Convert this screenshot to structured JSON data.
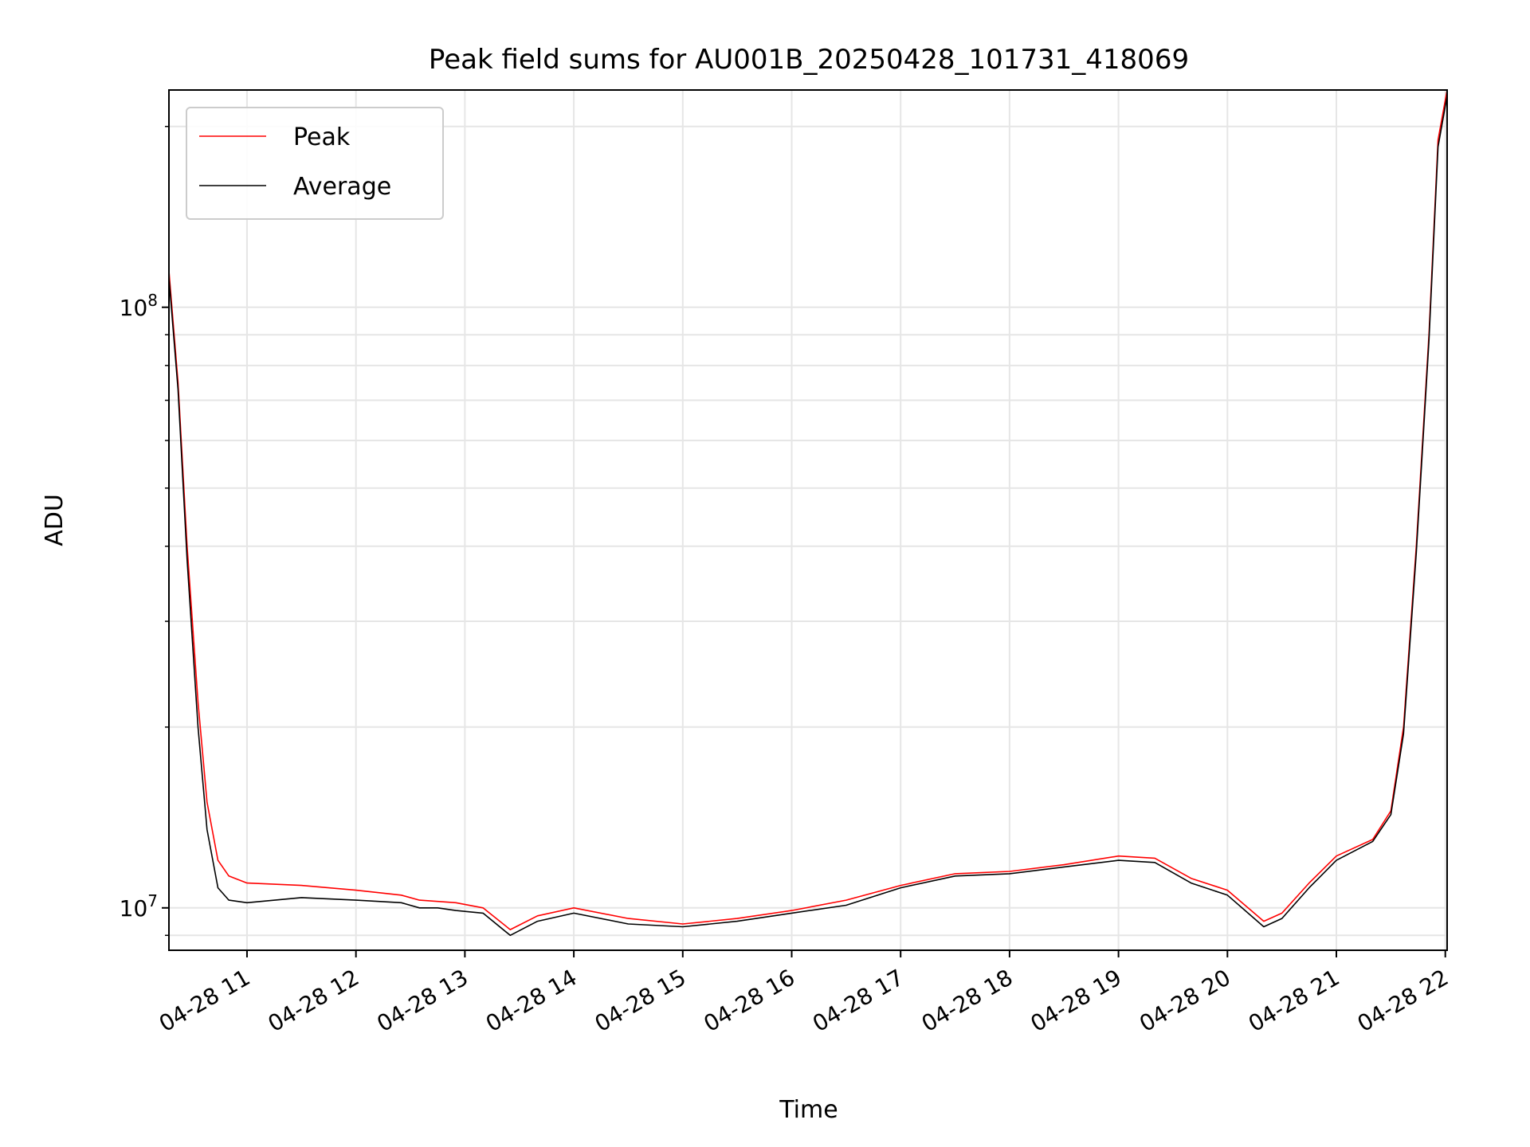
{
  "chart_data": {
    "type": "line",
    "title": "Peak field sums for AU001B_20250428_101731_418069",
    "xlabel": "Time",
    "ylabel": "ADU",
    "y_scale": "log",
    "ylim": [
      8500000,
      230000000
    ],
    "x_range": [
      "2025-04-28 10:17",
      "2025-04-28 22:01"
    ],
    "x_ticks": [
      {
        "t": "2025-04-28 11:00",
        "label": "04-28 11"
      },
      {
        "t": "2025-04-28 12:00",
        "label": "04-28 12"
      },
      {
        "t": "2025-04-28 13:00",
        "label": "04-28 13"
      },
      {
        "t": "2025-04-28 14:00",
        "label": "04-28 14"
      },
      {
        "t": "2025-04-28 15:00",
        "label": "04-28 15"
      },
      {
        "t": "2025-04-28 16:00",
        "label": "04-28 16"
      },
      {
        "t": "2025-04-28 17:00",
        "label": "04-28 17"
      },
      {
        "t": "2025-04-28 18:00",
        "label": "04-28 18"
      },
      {
        "t": "2025-04-28 19:00",
        "label": "04-28 19"
      },
      {
        "t": "2025-04-28 20:00",
        "label": "04-28 20"
      },
      {
        "t": "2025-04-28 21:00",
        "label": "04-28 21"
      },
      {
        "t": "2025-04-28 22:00",
        "label": "04-28 22"
      }
    ],
    "y_ticks": [
      {
        "value": 10000000,
        "base": "10",
        "exp": "7"
      },
      {
        "value": 100000000,
        "base": "10",
        "exp": "8"
      }
    ],
    "grid": true,
    "legend_position": "top-left",
    "series": [
      {
        "name": "Peak",
        "color": "#ff0000",
        "x": [
          "2025-04-28 10:17",
          "2025-04-28 10:22",
          "2025-04-28 10:27",
          "2025-04-28 10:33",
          "2025-04-28 10:38",
          "2025-04-28 10:44",
          "2025-04-28 10:50",
          "2025-04-28 11:00",
          "2025-04-28 11:30",
          "2025-04-28 12:00",
          "2025-04-28 12:25",
          "2025-04-28 12:35",
          "2025-04-28 12:45",
          "2025-04-28 12:55",
          "2025-04-28 13:10",
          "2025-04-28 13:25",
          "2025-04-28 13:40",
          "2025-04-28 14:00",
          "2025-04-28 14:30",
          "2025-04-28 15:00",
          "2025-04-28 15:30",
          "2025-04-28 16:00",
          "2025-04-28 16:30",
          "2025-04-28 17:00",
          "2025-04-28 17:30",
          "2025-04-28 18:00",
          "2025-04-28 18:30",
          "2025-04-28 19:00",
          "2025-04-28 19:20",
          "2025-04-28 19:40",
          "2025-04-28 20:00",
          "2025-04-28 20:20",
          "2025-04-28 20:30",
          "2025-04-28 20:45",
          "2025-04-28 21:00",
          "2025-04-28 21:20",
          "2025-04-28 21:30",
          "2025-04-28 21:37",
          "2025-04-28 21:44",
          "2025-04-28 21:51",
          "2025-04-28 21:56",
          "2025-04-28 22:01"
        ],
        "values": [
          115000000,
          75000000,
          40000000,
          22000000,
          15000000,
          12000000,
          11300000,
          11000000,
          10900000,
          10700000,
          10500000,
          10300000,
          10250000,
          10200000,
          10000000,
          9200000,
          9700000,
          10000000,
          9600000,
          9400000,
          9600000,
          9900000,
          10300000,
          10900000,
          11400000,
          11500000,
          11800000,
          12200000,
          12100000,
          11200000,
          10700000,
          9500000,
          9800000,
          11000000,
          12200000,
          13000000,
          14500000,
          20000000,
          40000000,
          90000000,
          190000000,
          230000000
        ]
      },
      {
        "name": "Average",
        "color": "#000000",
        "x": [
          "2025-04-28 10:17",
          "2025-04-28 10:22",
          "2025-04-28 10:27",
          "2025-04-28 10:33",
          "2025-04-28 10:38",
          "2025-04-28 10:44",
          "2025-04-28 10:50",
          "2025-04-28 11:00",
          "2025-04-28 11:30",
          "2025-04-28 12:00",
          "2025-04-28 12:25",
          "2025-04-28 12:35",
          "2025-04-28 12:45",
          "2025-04-28 12:55",
          "2025-04-28 13:10",
          "2025-04-28 13:25",
          "2025-04-28 13:40",
          "2025-04-28 14:00",
          "2025-04-28 14:30",
          "2025-04-28 15:00",
          "2025-04-28 15:30",
          "2025-04-28 16:00",
          "2025-04-28 16:30",
          "2025-04-28 17:00",
          "2025-04-28 17:30",
          "2025-04-28 18:00",
          "2025-04-28 18:30",
          "2025-04-28 19:00",
          "2025-04-28 19:20",
          "2025-04-28 19:40",
          "2025-04-28 20:00",
          "2025-04-28 20:20",
          "2025-04-28 20:30",
          "2025-04-28 20:45",
          "2025-04-28 21:00",
          "2025-04-28 21:20",
          "2025-04-28 21:30",
          "2025-04-28 21:37",
          "2025-04-28 21:44",
          "2025-04-28 21:51",
          "2025-04-28 21:56",
          "2025-04-28 22:01"
        ],
        "values": [
          112000000,
          73000000,
          38000000,
          20000000,
          13500000,
          10800000,
          10300000,
          10200000,
          10400000,
          10300000,
          10200000,
          10000000,
          10000000,
          9900000,
          9800000,
          9000000,
          9500000,
          9800000,
          9400000,
          9300000,
          9500000,
          9800000,
          10100000,
          10800000,
          11300000,
          11400000,
          11700000,
          12000000,
          11900000,
          11000000,
          10500000,
          9300000,
          9600000,
          10800000,
          12000000,
          12900000,
          14300000,
          19500000,
          39000000,
          88000000,
          185000000,
          225000000
        ]
      }
    ]
  }
}
